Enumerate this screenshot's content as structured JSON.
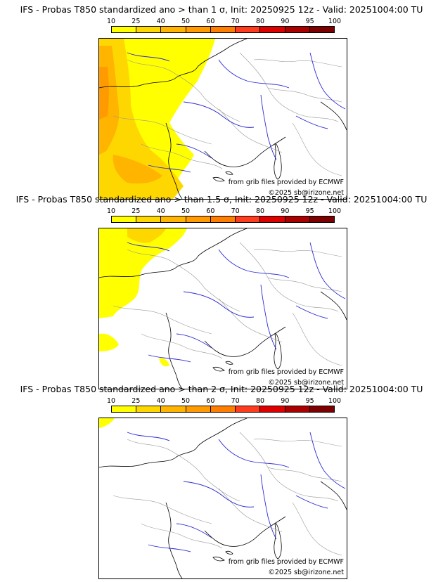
{
  "colorbar": {
    "ticks": [
      "10",
      "25",
      "40",
      "50",
      "60",
      "70",
      "80",
      "90",
      "95",
      "100"
    ],
    "colors": [
      "#ffff00",
      "#ffd700",
      "#ffb400",
      "#ff9b00",
      "#ff7d00",
      "#ff3c1e",
      "#dc0000",
      "#aa0000",
      "#7d0000"
    ]
  },
  "panels": [
    {
      "title": "IFS - Probas T850  standardized ano > than 1 σ, Init: 20250925 12z - Valid: 20251004:00 TU",
      "source": "from grib files provided by ECMWF",
      "copyright": "©2025 sb@irizone.net",
      "coverage": "high"
    },
    {
      "title": "IFS - Probas T850  standardized ano > than 1.5 σ, Init: 20250925 12z - Valid: 20251004:00 TU",
      "source": "from grib files provided by ECMWF",
      "copyright": "©2025 sb@irizone.net",
      "coverage": "medium"
    },
    {
      "title": "IFS - Probas T850  standardized ano > than 2 σ, Init: 20250925 12z - Valid: 20251004:00 TU",
      "source": "from grib files provided by ECMWF",
      "copyright": "©2025 sb@irizone.net",
      "coverage": "low"
    }
  ]
}
